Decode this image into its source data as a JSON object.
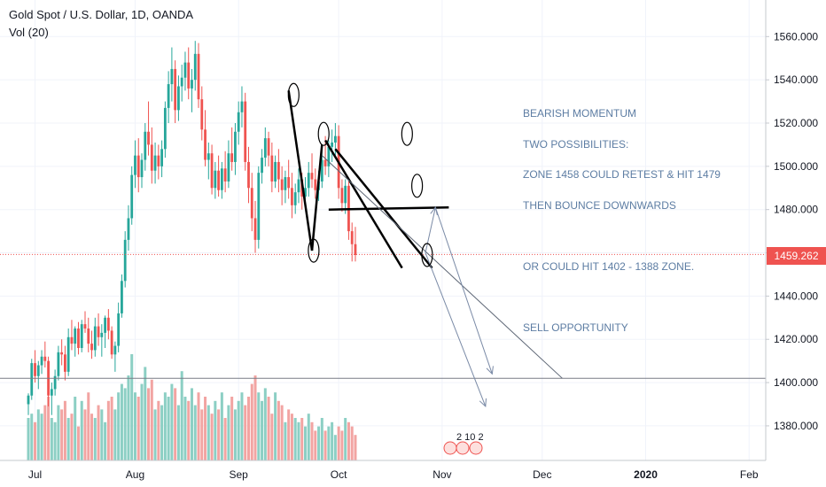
{
  "header": {
    "symbol": "Gold Spot / U.S. Dollar, 1D, OANDA",
    "volume": "Vol (20)"
  },
  "annotation": {
    "lines": [
      "BEARISH MOMENTUM",
      "TWO POSSIBILITIES:",
      "ZONE 1458 COULD RETEST & HIT 1479",
      "THEN BOUNCE DOWNWARDS",
      "",
      "OR COULD HIT 1402 - 1388 ZONE.",
      "",
      "SELL OPPORTUNITY"
    ]
  },
  "events_badge": "2 10 2",
  "colors": {
    "up": "#26a69a",
    "down": "#ef5350",
    "up_vol": "#8ccfc4",
    "down_vol": "#f2a4a2",
    "text": "#5d7da3"
  },
  "chart_data": {
    "type": "candlestick",
    "y_axis": {
      "range": [
        1364,
        1572
      ],
      "ticks": [
        1560,
        1540,
        1520,
        1500,
        1480,
        1460,
        1440,
        1420,
        1400,
        1380
      ],
      "tick_labels": [
        "1560.000",
        "1540.000",
        "1520.000",
        "1500.000",
        "1480.000",
        "1460.000",
        "1440.000",
        "1420.000",
        "1400.000",
        "1380.000"
      ]
    },
    "x_axis": {
      "labels": [
        "Jul",
        "Aug",
        "Sep",
        "Oct",
        "Nov",
        "Dec",
        "2020",
        "Feb"
      ],
      "label_days": [
        2,
        32,
        63,
        93,
        124,
        154,
        185,
        216
      ]
    },
    "last_price": "1459.262",
    "horizontal_level": 1402,
    "ohlc": [
      [
        1390,
        1395,
        1385,
        1394
      ],
      [
        1394,
        1411,
        1392,
        1409
      ],
      [
        1409,
        1415,
        1400,
        1403
      ],
      [
        1403,
        1410,
        1397,
        1408
      ],
      [
        1408,
        1415,
        1404,
        1412
      ],
      [
        1412,
        1419,
        1407,
        1410
      ],
      [
        1410,
        1412,
        1389,
        1394
      ],
      [
        1394,
        1400,
        1385,
        1397
      ],
      [
        1397,
        1406,
        1394,
        1403
      ],
      [
        1403,
        1417,
        1401,
        1414
      ],
      [
        1414,
        1420,
        1408,
        1413
      ],
      [
        1413,
        1417,
        1401,
        1405
      ],
      [
        1405,
        1425,
        1403,
        1421
      ],
      [
        1421,
        1429,
        1415,
        1418
      ],
      [
        1418,
        1426,
        1412,
        1425
      ],
      [
        1425,
        1428,
        1413,
        1416
      ],
      [
        1416,
        1429,
        1414,
        1427
      ],
      [
        1427,
        1433,
        1423,
        1425
      ],
      [
        1425,
        1430,
        1414,
        1418
      ],
      [
        1418,
        1424,
        1411,
        1415
      ],
      [
        1415,
        1430,
        1412,
        1426
      ],
      [
        1426,
        1432,
        1417,
        1421
      ],
      [
        1421,
        1427,
        1412,
        1423
      ],
      [
        1423,
        1431,
        1416,
        1430
      ],
      [
        1430,
        1434,
        1420,
        1424
      ],
      [
        1424,
        1426,
        1411,
        1413
      ],
      [
        1413,
        1419,
        1405,
        1417
      ],
      [
        1417,
        1437,
        1414,
        1432
      ],
      [
        1432,
        1450,
        1430,
        1447
      ],
      [
        1447,
        1470,
        1444,
        1466
      ],
      [
        1466,
        1482,
        1461,
        1476
      ],
      [
        1476,
        1500,
        1473,
        1496
      ],
      [
        1496,
        1512,
        1490,
        1505
      ],
      [
        1505,
        1513,
        1488,
        1495
      ],
      [
        1495,
        1506,
        1490,
        1503
      ],
      [
        1503,
        1520,
        1498,
        1516
      ],
      [
        1516,
        1530,
        1505,
        1510
      ],
      [
        1510,
        1518,
        1492,
        1498
      ],
      [
        1498,
        1511,
        1492,
        1505
      ],
      [
        1505,
        1510,
        1494,
        1500
      ],
      [
        1500,
        1512,
        1495,
        1508
      ],
      [
        1508,
        1530,
        1504,
        1527
      ],
      [
        1527,
        1544,
        1520,
        1538
      ],
      [
        1538,
        1555,
        1530,
        1545
      ],
      [
        1545,
        1549,
        1520,
        1526
      ],
      [
        1526,
        1542,
        1521,
        1537
      ],
      [
        1537,
        1547,
        1530,
        1541
      ],
      [
        1541,
        1553,
        1535,
        1548
      ],
      [
        1548,
        1555,
        1531,
        1536
      ],
      [
        1536,
        1545,
        1525,
        1540
      ],
      [
        1540,
        1558,
        1535,
        1552
      ],
      [
        1552,
        1557,
        1527,
        1531
      ],
      [
        1531,
        1537,
        1512,
        1517
      ],
      [
        1517,
        1526,
        1500,
        1503
      ],
      [
        1503,
        1511,
        1494,
        1506
      ],
      [
        1506,
        1510,
        1487,
        1490
      ],
      [
        1490,
        1502,
        1485,
        1498
      ],
      [
        1498,
        1505,
        1486,
        1489
      ],
      [
        1489,
        1502,
        1485,
        1499
      ],
      [
        1499,
        1507,
        1488,
        1493
      ],
      [
        1493,
        1512,
        1490,
        1506
      ],
      [
        1506,
        1518,
        1498,
        1502
      ],
      [
        1502,
        1520,
        1496,
        1516
      ],
      [
        1516,
        1530,
        1510,
        1525
      ],
      [
        1525,
        1537,
        1518,
        1530
      ],
      [
        1530,
        1534,
        1498,
        1502
      ],
      [
        1502,
        1509,
        1483,
        1490
      ],
      [
        1490,
        1497,
        1470,
        1476
      ],
      [
        1476,
        1484,
        1460,
        1466
      ],
      [
        1466,
        1500,
        1462,
        1497
      ],
      [
        1497,
        1508,
        1492,
        1504
      ],
      [
        1504,
        1518,
        1500,
        1513
      ],
      [
        1513,
        1516,
        1500,
        1505
      ],
      [
        1505,
        1511,
        1488,
        1493
      ],
      [
        1493,
        1505,
        1490,
        1502
      ],
      [
        1502,
        1508,
        1488,
        1494
      ],
      [
        1494,
        1500,
        1482,
        1489
      ],
      [
        1489,
        1498,
        1483,
        1495
      ],
      [
        1495,
        1503,
        1485,
        1490
      ],
      [
        1490,
        1497,
        1476,
        1482
      ],
      [
        1482,
        1492,
        1478,
        1488
      ],
      [
        1488,
        1499,
        1483,
        1494
      ],
      [
        1494,
        1497,
        1480,
        1486
      ],
      [
        1486,
        1495,
        1480,
        1490
      ],
      [
        1490,
        1502,
        1486,
        1497
      ],
      [
        1497,
        1506,
        1490,
        1494
      ],
      [
        1494,
        1499,
        1485,
        1489
      ],
      [
        1489,
        1498,
        1484,
        1493
      ],
      [
        1493,
        1507,
        1490,
        1503
      ],
      [
        1503,
        1514,
        1496,
        1500
      ],
      [
        1500,
        1512,
        1495,
        1509
      ],
      [
        1509,
        1517,
        1502,
        1511
      ],
      [
        1511,
        1520,
        1505,
        1514
      ],
      [
        1514,
        1519,
        1485,
        1490
      ],
      [
        1490,
        1494,
        1479,
        1483
      ],
      [
        1483,
        1494,
        1478,
        1491
      ],
      [
        1491,
        1493,
        1466,
        1470
      ],
      [
        1470,
        1474,
        1456,
        1464
      ],
      [
        1464,
        1472,
        1456,
        1459
      ]
    ],
    "volume": [
      1.0,
      1.1,
      0.9,
      1.2,
      1.1,
      1.3,
      1.5,
      1.0,
      0.9,
      1.3,
      1.2,
      1.4,
      1.0,
      1.1,
      1.5,
      0.8,
      1.4,
      1.2,
      1.6,
      1.1,
      1.0,
      1.3,
      1.2,
      0.9,
      1.4,
      1.5,
      1.2,
      1.6,
      1.8,
      1.7,
      2.0,
      2.5,
      1.6,
      1.5,
      1.8,
      2.2,
      1.7,
      1.9,
      1.2,
      1.4,
      1.3,
      1.6,
      1.5,
      1.8,
      1.7,
      1.3,
      2.1,
      1.5,
      1.4,
      1.7,
      1.3,
      1.6,
      1.2,
      1.5,
      1.3,
      1.1,
      1.4,
      1.2,
      1.6,
      1.0,
      1.3,
      1.5,
      1.2,
      1.4,
      1.6,
      1.3,
      1.5,
      1.8,
      2.0,
      1.6,
      1.4,
      1.7,
      1.5,
      1.1,
      1.6,
      1.4,
      1.3,
      0.9,
      1.2,
      1.1,
      1.0,
      0.9,
      1.0,
      0.8,
      1.1,
      0.9,
      0.7,
      0.8,
      1.0,
      0.7,
      0.8,
      0.9,
      0.6,
      0.8,
      0.7,
      1.0,
      0.9,
      0.8,
      0.6
    ],
    "drawings": [
      {
        "type": "trend_line",
        "points": [
          [
            78,
            1535
          ],
          [
            85,
            1461
          ]
        ]
      },
      {
        "type": "trend_line",
        "points": [
          [
            85,
            1461
          ],
          [
            88,
            1510
          ]
        ]
      },
      {
        "type": "trend_line",
        "points": [
          [
            89,
            1512
          ],
          [
            112,
            1453
          ]
        ]
      },
      {
        "type": "trend_line",
        "points": [
          [
            92,
            1508
          ],
          [
            121,
            1453
          ]
        ]
      },
      {
        "type": "trend_line",
        "points": [
          [
            90,
            1480
          ],
          [
            126,
            1481
          ]
        ]
      },
      {
        "type": "trend_line",
        "points": [
          [
            88,
            1505
          ],
          [
            160,
            1402
          ]
        ]
      },
      {
        "type": "arrow",
        "points": [
          [
            119,
            1460
          ],
          [
            137,
            1389
          ]
        ]
      },
      {
        "type": "arrow",
        "points": [
          [
            119,
            1460
          ],
          [
            122,
            1481
          ],
          [
            139,
            1404
          ]
        ]
      },
      {
        "type": "circle",
        "center": [
          79.5,
          1533
        ]
      },
      {
        "type": "circle",
        "center": [
          85.5,
          1461
        ]
      },
      {
        "type": "circle",
        "center": [
          88.5,
          1515
        ]
      },
      {
        "type": "circle",
        "center": [
          113.5,
          1515
        ]
      },
      {
        "type": "circle",
        "center": [
          116.5,
          1491
        ]
      },
      {
        "type": "circle",
        "center": [
          119.5,
          1459
        ]
      }
    ]
  }
}
